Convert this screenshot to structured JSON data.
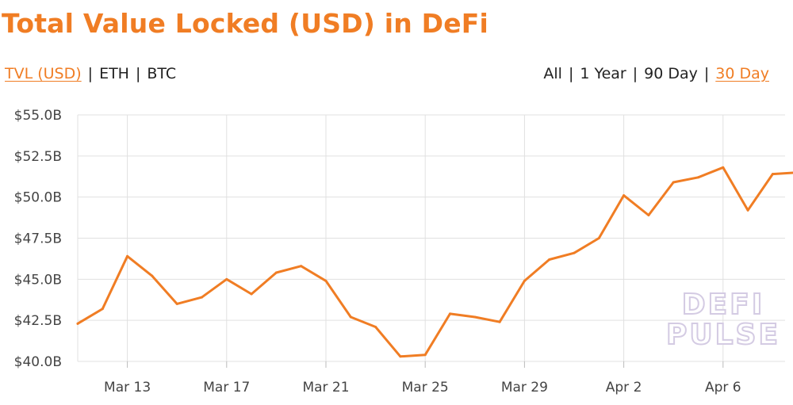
{
  "title": "Total Value Locked (USD) in DeFi",
  "units_toggle": {
    "options": [
      "TVL (USD)",
      "ETH",
      "BTC"
    ],
    "active": "TVL (USD)"
  },
  "range_toggle": {
    "options": [
      "All",
      "1 Year",
      "90 Day",
      "30 Day"
    ],
    "active": "30 Day"
  },
  "watermark": [
    "DEFI",
    "PULSE"
  ],
  "colors": {
    "accent": "#f07d24",
    "grid": "#e0e0e0",
    "text": "#222222"
  },
  "chart_data": {
    "type": "line",
    "x": [
      "Mar 11",
      "Mar 12",
      "Mar 13",
      "Mar 14",
      "Mar 15",
      "Mar 16",
      "Mar 17",
      "Mar 18",
      "Mar 19",
      "Mar 20",
      "Mar 21",
      "Mar 22",
      "Mar 23",
      "Mar 24",
      "Mar 25",
      "Mar 26",
      "Mar 27",
      "Mar 28",
      "Mar 29",
      "Mar 30",
      "Mar 31",
      "Apr 1",
      "Apr 2",
      "Apr 3",
      "Apr 4",
      "Apr 5",
      "Apr 6",
      "Apr 7",
      "Apr 8",
      "Apr 9",
      "Apr 10"
    ],
    "series": [
      {
        "color": "#f07d24",
        "values": [
          42.3,
          43.2,
          46.4,
          45.2,
          43.5,
          43.9,
          45.0,
          44.1,
          45.4,
          45.8,
          44.9,
          42.7,
          42.1,
          40.3,
          40.4,
          42.9,
          42.7,
          42.4,
          44.9,
          46.2,
          46.6,
          47.5,
          50.1,
          48.9,
          50.9,
          51.2,
          51.8,
          49.2,
          51.4,
          51.5,
          51.5
        ]
      }
    ],
    "ylim": [
      40.0,
      55.0
    ],
    "yticks": [
      40.0,
      42.5,
      45.0,
      47.5,
      50.0,
      52.5,
      55.0
    ],
    "ytick_labels": [
      "$40.0B",
      "$42.5B",
      "$45.0B",
      "$47.5B",
      "$50.0B",
      "$52.5B",
      "$55.0B"
    ],
    "xtick_labels": [
      "Mar 13",
      "Mar 17",
      "Mar 21",
      "Mar 25",
      "Mar 29",
      "Apr 2",
      "Apr 6"
    ],
    "xtick_indices": [
      2,
      6,
      10,
      14,
      18,
      22,
      26
    ],
    "grid": true,
    "legend": "none"
  }
}
